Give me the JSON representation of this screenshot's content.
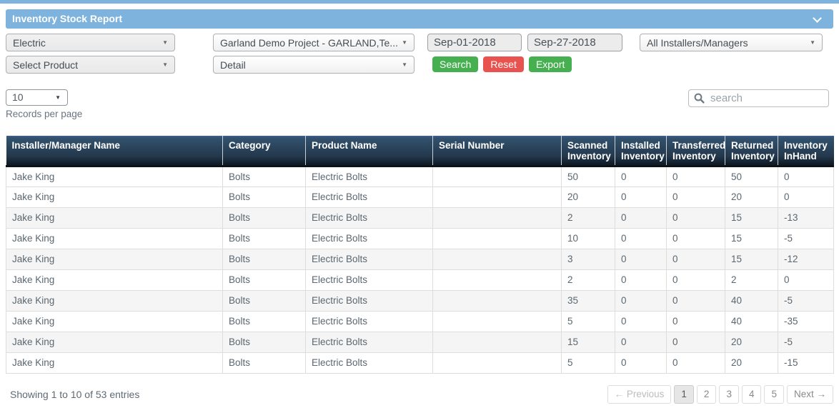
{
  "title_bar": {
    "title": "Inventory Stock Report"
  },
  "filters": {
    "category": {
      "value": "Electric"
    },
    "project": {
      "value": "Garland Demo Project - GARLAND,Te..."
    },
    "date_from": {
      "value": "Sep-01-2018"
    },
    "date_to": {
      "value": "Sep-27-2018"
    },
    "installer": {
      "value": "All Installers/Managers"
    },
    "product": {
      "value": "Select Product"
    },
    "report_type": {
      "value": "Detail"
    },
    "buttons": {
      "search": "Search",
      "reset": "Reset",
      "export": "Export"
    }
  },
  "records_per_page": {
    "value": "10",
    "label": "Records per page"
  },
  "table_search": {
    "placeholder": "search"
  },
  "table": {
    "columns": [
      "Installer/Manager Name",
      "Category",
      "Product Name",
      "Serial Number",
      "Scanned Inventory",
      "Installed Inventory",
      "Transferred Inventory",
      "Returned Inventory",
      "Inventory InHand"
    ],
    "rows": [
      [
        "Jake King",
        "Bolts",
        "Electric Bolts",
        "",
        "50",
        "0",
        "0",
        "50",
        "0"
      ],
      [
        "Jake King",
        "Bolts",
        "Electric Bolts",
        "",
        "20",
        "0",
        "0",
        "20",
        "0"
      ],
      [
        "Jake King",
        "Bolts",
        "Electric Bolts",
        "",
        "2",
        "0",
        "0",
        "15",
        "-13"
      ],
      [
        "Jake King",
        "Bolts",
        "Electric Bolts",
        "",
        "10",
        "0",
        "0",
        "15",
        "-5"
      ],
      [
        "Jake King",
        "Bolts",
        "Electric Bolts",
        "",
        "3",
        "0",
        "0",
        "15",
        "-12"
      ],
      [
        "Jake King",
        "Bolts",
        "Electric Bolts",
        "",
        "2",
        "0",
        "0",
        "2",
        "0"
      ],
      [
        "Jake King",
        "Bolts",
        "Electric Bolts",
        "",
        "35",
        "0",
        "0",
        "40",
        "-5"
      ],
      [
        "Jake King",
        "Bolts",
        "Electric Bolts",
        "",
        "5",
        "0",
        "0",
        "40",
        "-35"
      ],
      [
        "Jake King",
        "Bolts",
        "Electric Bolts",
        "",
        "15",
        "0",
        "0",
        "20",
        "-5"
      ],
      [
        "Jake King",
        "Bolts",
        "Electric Bolts",
        "",
        "5",
        "0",
        "0",
        "20",
        "-15"
      ]
    ]
  },
  "footer": {
    "summary": "Showing 1 to 10 of 53 entries",
    "pagination": {
      "previous": "← Previous",
      "pages": [
        "1",
        "2",
        "3",
        "4",
        "5"
      ],
      "active_page": "1",
      "next": "Next →"
    }
  },
  "colors": {
    "accent_blue": "#7eb3de",
    "table_header_top": "#3d5a77",
    "table_header_bottom": "#101c29",
    "button_green": "#46b050",
    "button_red": "#e9534f",
    "stripe_gray": "#f5f5f5"
  }
}
